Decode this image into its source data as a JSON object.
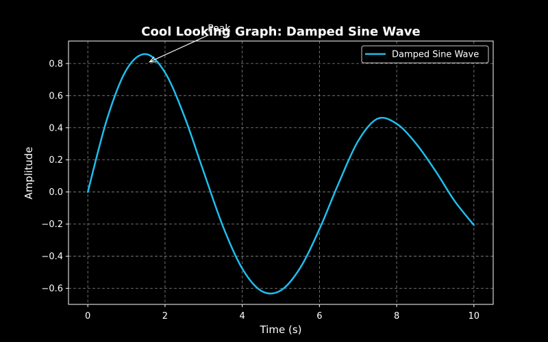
{
  "chart_data": {
    "type": "line",
    "title": "Cool Looking Graph: Damped Sine Wave",
    "xlabel": "Time (s)",
    "ylabel": "Amplitude",
    "xlim": [
      -0.5,
      10.5
    ],
    "ylim": [
      -0.7,
      0.94
    ],
    "xticks": [
      0,
      2,
      4,
      6,
      8,
      10
    ],
    "xtick_labels": [
      "0",
      "2",
      "4",
      "6",
      "8",
      "10"
    ],
    "yticks": [
      -0.6,
      -0.4,
      -0.2,
      0.0,
      0.2,
      0.4,
      0.6,
      0.8
    ],
    "ytick_labels": [
      "−0.6",
      "−0.4",
      "−0.2",
      "0.0",
      "0.2",
      "0.4",
      "0.6",
      "0.8"
    ],
    "grid": true,
    "legend_position": "top-right",
    "series": [
      {
        "name": "Damped Sine Wave",
        "color": "#1fbfef",
        "x": [
          0,
          0.5,
          1,
          1.5,
          2,
          2.5,
          3,
          3.5,
          4,
          4.5,
          5,
          5.5,
          6,
          6.5,
          7,
          7.5,
          8,
          8.5,
          9,
          9.5,
          10
        ],
        "y": [
          0.0,
          0.456,
          0.761,
          0.859,
          0.744,
          0.472,
          0.126,
          -0.214,
          -0.477,
          -0.617,
          -0.613,
          -0.473,
          -0.231,
          0.056,
          0.317,
          0.456,
          0.425,
          0.302,
          0.133,
          -0.056,
          -0.206
        ]
      }
    ],
    "annotations": [
      {
        "text": "Peak",
        "x": 1.6,
        "y": 0.81,
        "text_x": 3.4,
        "text_y": 1.0
      }
    ]
  }
}
